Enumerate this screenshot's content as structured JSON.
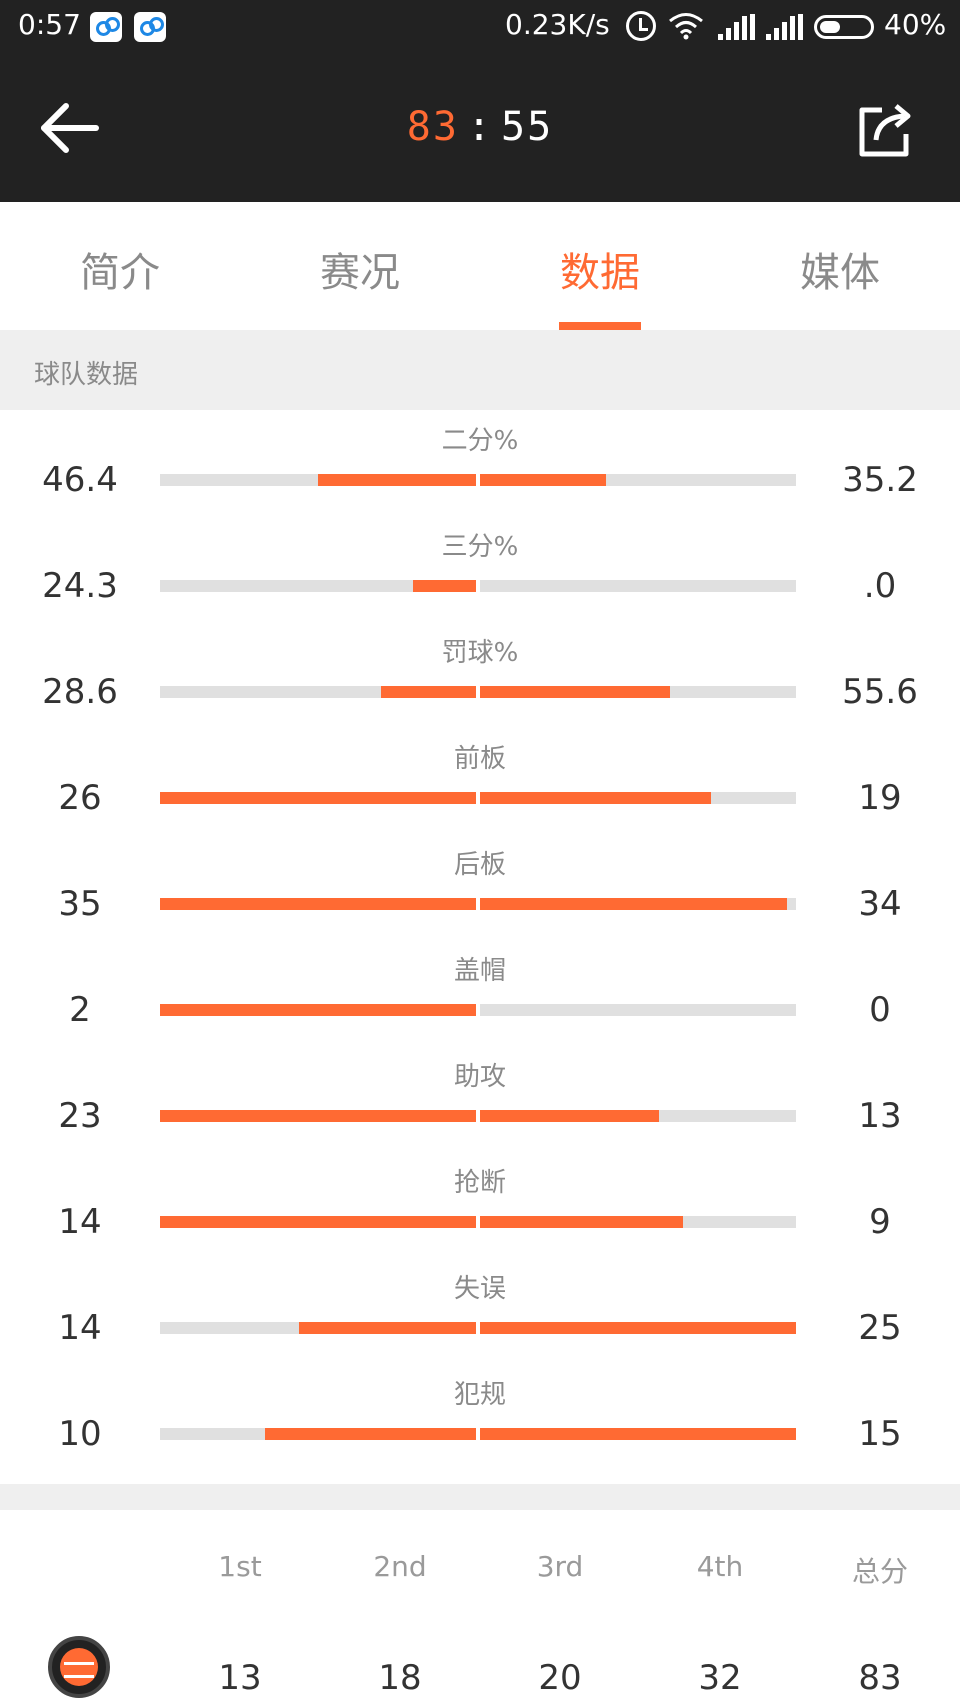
{
  "status_bar": {
    "time": "0:57",
    "app_icons": [
      "baidu-cloud-icon",
      "baidu-cloud-icon"
    ],
    "net_speed": "0.23K/s",
    "battery_percent": "40%"
  },
  "nav": {
    "score_home": "83",
    "score_separator": ":",
    "score_away": "55",
    "back_icon": "arrow-left-icon",
    "share_icon": "share-icon"
  },
  "tabs": [
    {
      "label": "简介"
    },
    {
      "label": "赛况"
    },
    {
      "label": "数据"
    },
    {
      "label": "媒体"
    }
  ],
  "active_tab": 2,
  "accent_color": "#ff6a33",
  "section": {
    "title": "球队数据"
  },
  "stats": [
    {
      "label": "二分%",
      "left": "46.4",
      "right": "35.2",
      "left_frac": 0.5,
      "right_frac": 0.4
    },
    {
      "label": "三分%",
      "left": "24.3",
      "right": ".0",
      "left_frac": 0.2,
      "right_frac": 0.0
    },
    {
      "label": "罚球%",
      "left": "28.6",
      "right": "55.6",
      "left_frac": 0.3,
      "right_frac": 0.6
    },
    {
      "label": "前板",
      "left": "26",
      "right": "19",
      "left_frac": 1.0,
      "right_frac": 0.73
    },
    {
      "label": "后板",
      "left": "35",
      "right": "34",
      "left_frac": 1.0,
      "right_frac": 0.97
    },
    {
      "label": "盖帽",
      "left": "2",
      "right": "0",
      "left_frac": 1.0,
      "right_frac": 0.0
    },
    {
      "label": "助攻",
      "left": "23",
      "right": "13",
      "left_frac": 1.0,
      "right_frac": 0.565
    },
    {
      "label": "抢断",
      "left": "14",
      "right": "9",
      "left_frac": 1.0,
      "right_frac": 0.643
    },
    {
      "label": "失误",
      "left": "14",
      "right": "25",
      "left_frac": 0.56,
      "right_frac": 1.0
    },
    {
      "label": "犯规",
      "left": "10",
      "right": "15",
      "left_frac": 0.667,
      "right_frac": 1.0
    }
  ],
  "quarters": {
    "headers": [
      "1st",
      "2nd",
      "3rd",
      "4th",
      "总分"
    ],
    "rows": [
      {
        "team_icon": "team-logo-icon",
        "values": [
          "13",
          "18",
          "20",
          "32",
          "83"
        ]
      }
    ]
  }
}
